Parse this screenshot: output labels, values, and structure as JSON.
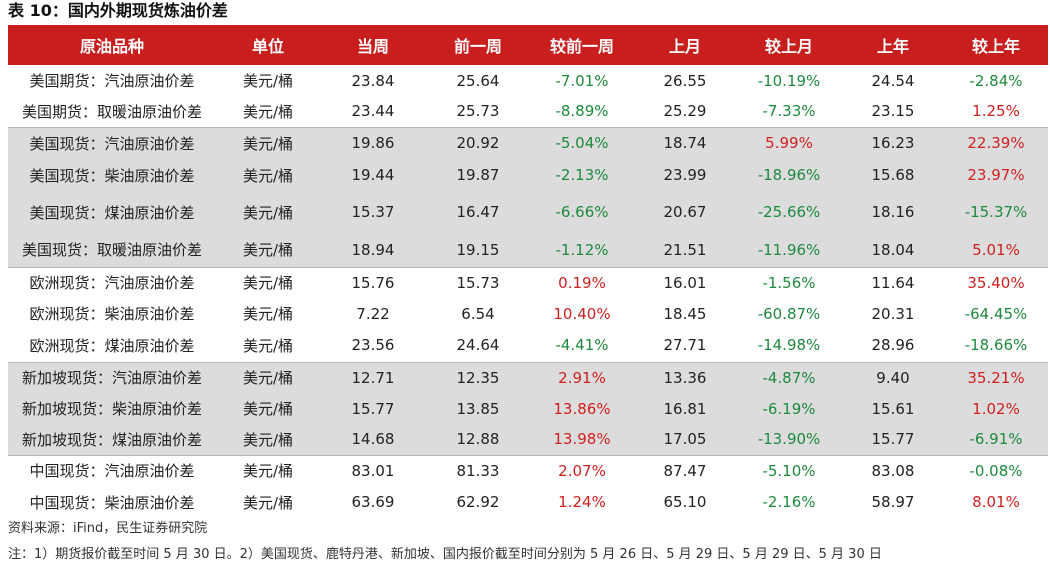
{
  "title": "表 10：国内外期现货炼油价差",
  "headers": [
    "原油品种",
    "单位",
    "当周",
    "前一周",
    "较前一周",
    "上月",
    "较上月",
    "上年",
    "较上年"
  ],
  "rows": [
    {
      "name": "美国期货：汽油原油价差",
      "unit": "美元/桶",
      "cur": "23.84",
      "prev_week": "25.64",
      "chg_week": "-7.01%",
      "last_month": "26.55",
      "chg_month": "-10.19%",
      "last_year": "24.54",
      "chg_year": "-2.84%"
    },
    {
      "name": "美国期货：取暖油原油价差",
      "unit": "美元/桶",
      "cur": "23.44",
      "prev_week": "25.73",
      "chg_week": "-8.89%",
      "last_month": "25.29",
      "chg_month": "-7.33%",
      "last_year": "23.15",
      "chg_year": "1.25%"
    },
    {
      "name": "美国现货：汽油原油价差",
      "unit": "美元/桶",
      "cur": "19.86",
      "prev_week": "20.92",
      "chg_week": "-5.04%",
      "last_month": "18.74",
      "chg_month": "5.99%",
      "last_year": "16.23",
      "chg_year": "22.39%"
    },
    {
      "name": "美国现货：柴油原油价差",
      "unit": "美元/桶",
      "cur": "19.44",
      "prev_week": "19.87",
      "chg_week": "-2.13%",
      "last_month": "23.99",
      "chg_month": "-18.96%",
      "last_year": "15.68",
      "chg_year": "23.97%"
    },
    {
      "name": "美国现货：煤油原油价差",
      "unit": "美元/桶",
      "cur": "15.37",
      "prev_week": "16.47",
      "chg_week": "-6.66%",
      "last_month": "20.67",
      "chg_month": "-25.66%",
      "last_year": "18.16",
      "chg_year": "-15.37%"
    },
    {
      "name": "美国现货：取暖油原油价差",
      "unit": "美元/桶",
      "cur": "18.94",
      "prev_week": "19.15",
      "chg_week": "-1.12%",
      "last_month": "21.51",
      "chg_month": "-11.96%",
      "last_year": "18.04",
      "chg_year": "5.01%"
    },
    {
      "name": "欧洲现货：汽油原油价差",
      "unit": "美元/桶",
      "cur": "15.76",
      "prev_week": "15.73",
      "chg_week": "0.19%",
      "last_month": "16.01",
      "chg_month": "-1.56%",
      "last_year": "11.64",
      "chg_year": "35.40%"
    },
    {
      "name": "欧洲现货：柴油原油价差",
      "unit": "美元/桶",
      "cur": "7.22",
      "prev_week": "6.54",
      "chg_week": "10.40%",
      "last_month": "18.45",
      "chg_month": "-60.87%",
      "last_year": "20.31",
      "chg_year": "-64.45%"
    },
    {
      "name": "欧洲现货：煤油原油价差",
      "unit": "美元/桶",
      "cur": "23.56",
      "prev_week": "24.64",
      "chg_week": "-4.41%",
      "last_month": "27.71",
      "chg_month": "-14.98%",
      "last_year": "28.96",
      "chg_year": "-18.66%"
    },
    {
      "name": "新加坡现货：汽油原油价差",
      "unit": "美元/桶",
      "cur": "12.71",
      "prev_week": "12.35",
      "chg_week": "2.91%",
      "last_month": "13.36",
      "chg_month": "-4.87%",
      "last_year": "9.40",
      "chg_year": "35.21%"
    },
    {
      "name": "新加坡现货：柴油原油价差",
      "unit": "美元/桶",
      "cur": "15.77",
      "prev_week": "13.85",
      "chg_week": "13.86%",
      "last_month": "16.81",
      "chg_month": "-6.19%",
      "last_year": "15.61",
      "chg_year": "1.02%"
    },
    {
      "name": "新加坡现货：煤油原油价差",
      "unit": "美元/桶",
      "cur": "14.68",
      "prev_week": "12.88",
      "chg_week": "13.98%",
      "last_month": "17.05",
      "chg_month": "-13.90%",
      "last_year": "15.77",
      "chg_year": "-6.91%"
    },
    {
      "name": "中国现货：汽油原油价差",
      "unit": "美元/桶",
      "cur": "83.01",
      "prev_week": "81.33",
      "chg_week": "2.07%",
      "last_month": "87.47",
      "chg_month": "-5.10%",
      "last_year": "83.08",
      "chg_year": "-0.08%"
    },
    {
      "name": "中国现货：柴油原油价差",
      "unit": "美元/桶",
      "cur": "63.69",
      "prev_week": "62.92",
      "chg_week": "1.24%",
      "last_month": "65.10",
      "chg_month": "-2.16%",
      "last_year": "58.97",
      "chg_year": "8.01%"
    }
  ],
  "source": "资料来源：iFind，民生证券研究院",
  "note": "注：1）期货报价截至时间 5 月 30 日。2）美国现货、鹿特丹港、新加坡、国内报价截至时间分别为 5 月 26 日、5 月 29 日、5 月 29 日、5 月 30 日",
  "colors": {
    "header_bg": "#c81e1e",
    "header_text": "#ffffff",
    "shaded_row": "#dcdcdc",
    "negative": "#1e8a3e",
    "positive": "#d01f1f"
  }
}
